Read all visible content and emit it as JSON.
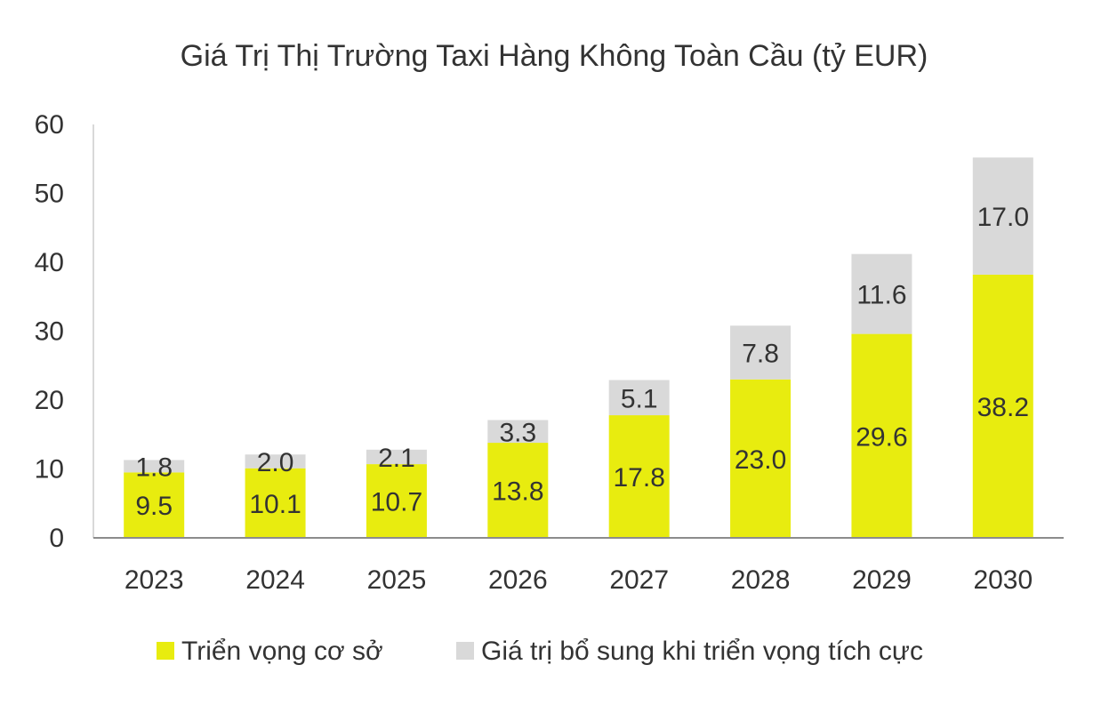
{
  "chart_data": {
    "type": "bar",
    "stacked": true,
    "title": "Giá Trị Thị Trường Taxi Hàng Không Toàn Cầu (tỷ EUR)",
    "categories": [
      "2023",
      "2024",
      "2025",
      "2026",
      "2027",
      "2028",
      "2029",
      "2030"
    ],
    "series": [
      {
        "name": "Triển vọng cơ sở",
        "color": "#e8ec0f",
        "values": [
          9.5,
          10.1,
          10.7,
          13.8,
          17.8,
          23.0,
          29.6,
          38.2
        ]
      },
      {
        "name": "Giá trị bổ sung khi triển vọng tích cực",
        "color": "#d9d9d9",
        "values": [
          1.8,
          2.0,
          2.1,
          3.3,
          5.1,
          7.8,
          11.6,
          17.0
        ]
      }
    ],
    "ylim": [
      0,
      60
    ],
    "yticks": [
      0,
      10,
      20,
      30,
      40,
      50,
      60
    ],
    "grid": false,
    "legend": "bottom"
  }
}
